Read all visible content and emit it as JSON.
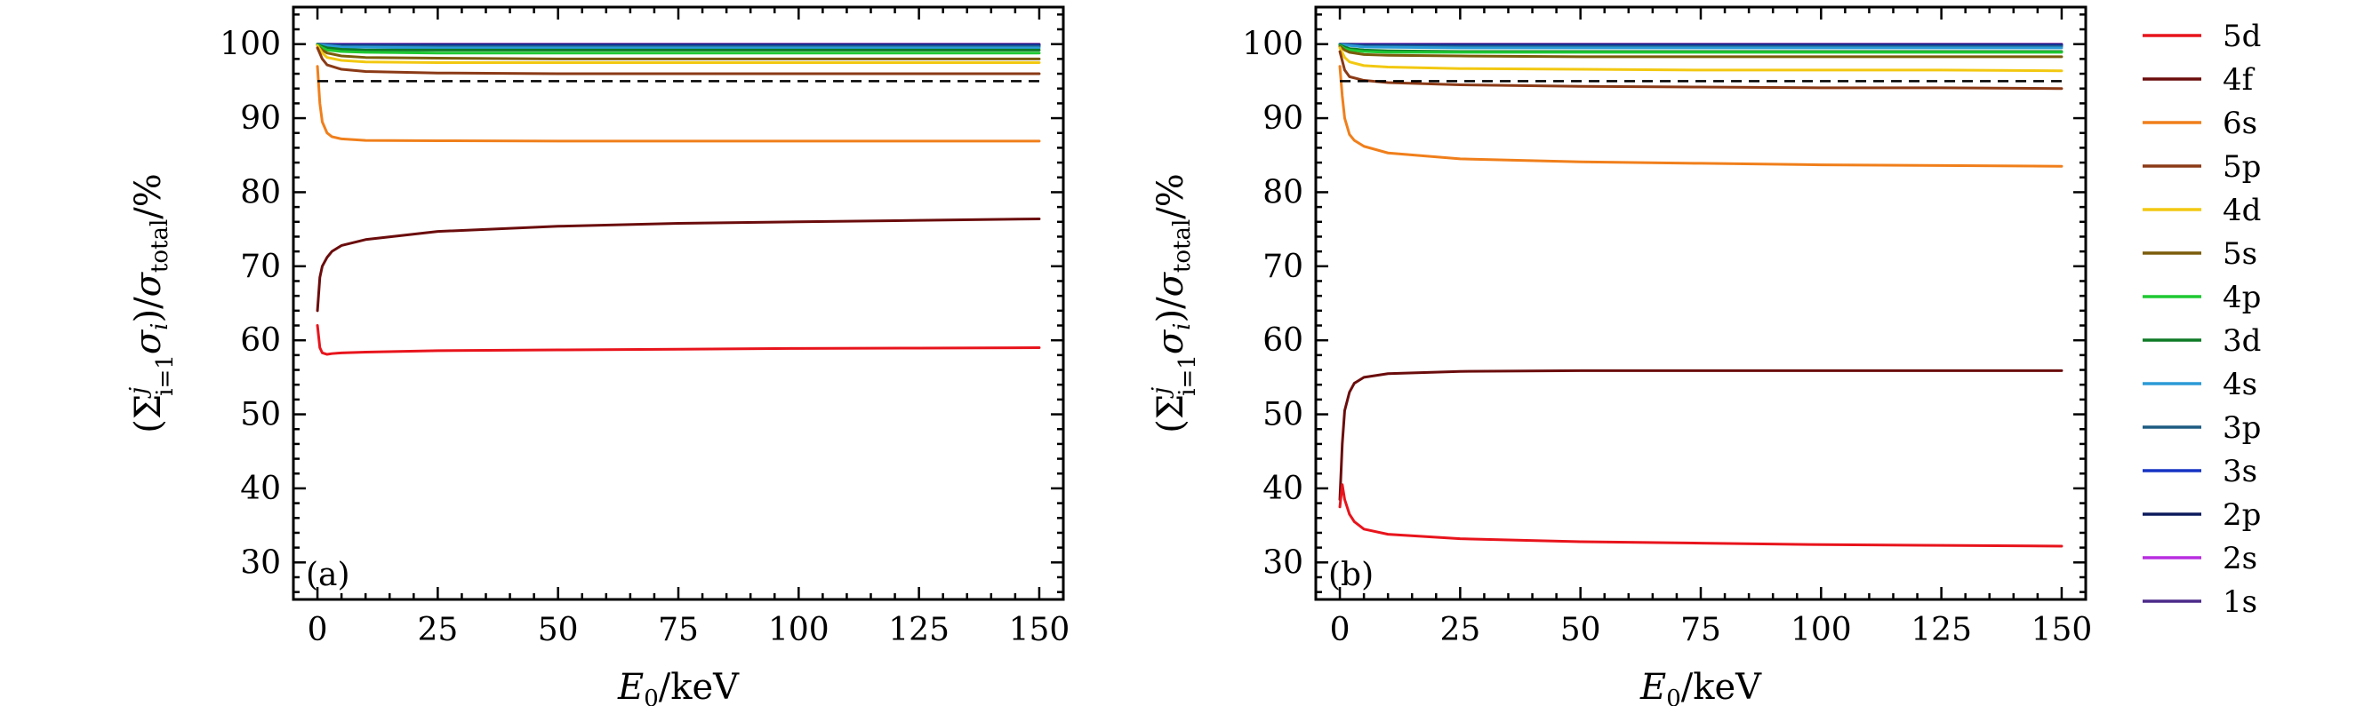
{
  "chart_data": [
    {
      "type": "line",
      "panel_label": "(a)",
      "xlabel": "E0/keV",
      "ylabel": "(Σ_{i=1}^{j} σ_i)/σ_total/%",
      "xlim": [
        -5,
        155
      ],
      "ylim": [
        25,
        105
      ],
      "xticks": [
        0,
        25,
        50,
        75,
        100,
        125,
        150
      ],
      "yticks": [
        30,
        40,
        50,
        60,
        70,
        80,
        90,
        100
      ],
      "reference_line": {
        "y": 95,
        "style": "dashed",
        "color": "#000000"
      },
      "series": [
        {
          "name": "5d",
          "color": "#e8141c",
          "x": [
            0,
            0.5,
            1,
            2,
            3,
            5,
            10,
            25,
            50,
            75,
            100,
            125,
            150
          ],
          "values": [
            62.0,
            59.0,
            58.3,
            58.1,
            58.2,
            58.3,
            58.4,
            58.6,
            58.7,
            58.8,
            58.9,
            58.95,
            59.0
          ]
        },
        {
          "name": "4f",
          "color": "#6b0c0c",
          "x": [
            0,
            0.5,
            1,
            2,
            3,
            5,
            10,
            25,
            50,
            75,
            100,
            125,
            150
          ],
          "values": [
            64.0,
            68.5,
            70.0,
            71.2,
            72.0,
            72.8,
            73.6,
            74.7,
            75.4,
            75.8,
            76.0,
            76.2,
            76.4
          ]
        },
        {
          "name": "6s",
          "color": "#f07f1b",
          "x": [
            0,
            0.5,
            1,
            2,
            3,
            5,
            10,
            25,
            50,
            75,
            100,
            125,
            150
          ],
          "values": [
            97.0,
            92.0,
            89.5,
            88.0,
            87.5,
            87.2,
            87.0,
            86.95,
            86.9,
            86.9,
            86.9,
            86.9,
            86.9
          ]
        },
        {
          "name": "5p",
          "color": "#8b3a16",
          "x": [
            0,
            1,
            2,
            5,
            10,
            25,
            50,
            75,
            100,
            125,
            150
          ],
          "values": [
            99.5,
            98.0,
            97.2,
            96.6,
            96.3,
            96.1,
            96.0,
            96.0,
            96.0,
            96.0,
            96.0
          ]
        },
        {
          "name": "4d",
          "color": "#f2c811",
          "x": [
            0,
            1,
            2,
            5,
            10,
            25,
            50,
            75,
            100,
            125,
            150
          ],
          "values": [
            99.8,
            98.8,
            98.2,
            97.8,
            97.6,
            97.5,
            97.5,
            97.5,
            97.5,
            97.5,
            97.5
          ]
        },
        {
          "name": "5s",
          "color": "#7a5c0a",
          "x": [
            0,
            1,
            2,
            5,
            10,
            25,
            50,
            75,
            100,
            125,
            150
          ],
          "values": [
            99.8,
            99.2,
            98.8,
            98.4,
            98.2,
            98.1,
            98.0,
            98.0,
            98.0,
            98.0,
            98.0
          ]
        },
        {
          "name": "4p",
          "color": "#1ec932",
          "x": [
            0,
            1,
            2,
            5,
            10,
            25,
            50,
            75,
            100,
            125,
            150
          ],
          "values": [
            99.9,
            99.5,
            99.2,
            99.0,
            98.9,
            98.8,
            98.8,
            98.8,
            98.8,
            98.8,
            98.8
          ]
        },
        {
          "name": "3d",
          "color": "#0e7a26",
          "x": [
            0,
            1,
            2,
            5,
            10,
            25,
            50,
            75,
            100,
            125,
            150
          ],
          "values": [
            99.95,
            99.7,
            99.5,
            99.3,
            99.2,
            99.2,
            99.2,
            99.2,
            99.2,
            99.2,
            99.2
          ]
        },
        {
          "name": "4s",
          "color": "#2c9ad6",
          "x": [
            0,
            5,
            25,
            150
          ],
          "values": [
            99.95,
            99.6,
            99.5,
            99.5
          ]
        },
        {
          "name": "3p",
          "color": "#1d5b82",
          "x": [
            0,
            5,
            25,
            150
          ],
          "values": [
            99.97,
            99.75,
            99.7,
            99.7
          ]
        },
        {
          "name": "3s",
          "color": "#1634c4",
          "x": [
            0,
            5,
            25,
            150
          ],
          "values": [
            99.98,
            99.85,
            99.8,
            99.8
          ]
        },
        {
          "name": "2p",
          "color": "#0b1a5c",
          "x": [
            0,
            5,
            25,
            150
          ],
          "values": [
            99.99,
            99.9,
            99.9,
            99.9
          ]
        },
        {
          "name": "2s",
          "color": "#b82ee0",
          "x": [
            0,
            150
          ],
          "values": [
            99.95,
            99.95
          ]
        },
        {
          "name": "1s",
          "color": "#4b2a8a",
          "x": [
            0,
            150
          ],
          "values": [
            100.0,
            100.0
          ]
        }
      ]
    },
    {
      "type": "line",
      "panel_label": "(b)",
      "xlabel": "E0/keV",
      "ylabel": "(Σ_{i=1}^{j} σ_i)/σ_total/%",
      "xlim": [
        -5,
        155
      ],
      "ylim": [
        25,
        105
      ],
      "xticks": [
        0,
        25,
        50,
        75,
        100,
        125,
        150
      ],
      "yticks": [
        30,
        40,
        50,
        60,
        70,
        80,
        90,
        100
      ],
      "reference_line": {
        "y": 95,
        "style": "dashed",
        "color": "#000000"
      },
      "series": [
        {
          "name": "5d",
          "color": "#e8141c",
          "x": [
            0,
            0.5,
            1,
            2,
            3,
            5,
            10,
            25,
            50,
            75,
            100,
            125,
            150
          ],
          "values": [
            37.5,
            40.5,
            38.5,
            36.5,
            35.5,
            34.5,
            33.8,
            33.2,
            32.8,
            32.6,
            32.4,
            32.3,
            32.2
          ]
        },
        {
          "name": "4f",
          "color": "#6b0c0c",
          "x": [
            0,
            0.5,
            1,
            2,
            3,
            5,
            10,
            25,
            50,
            75,
            100,
            125,
            150
          ],
          "values": [
            38.5,
            46.0,
            50.5,
            53.0,
            54.2,
            55.0,
            55.5,
            55.8,
            55.9,
            55.9,
            55.9,
            55.9,
            55.9
          ]
        },
        {
          "name": "6s",
          "color": "#f07f1b",
          "x": [
            0,
            0.5,
            1,
            2,
            3,
            5,
            10,
            25,
            50,
            75,
            100,
            125,
            150
          ],
          "values": [
            97.0,
            93.0,
            90.0,
            87.8,
            87.0,
            86.2,
            85.3,
            84.5,
            84.1,
            83.9,
            83.7,
            83.6,
            83.5
          ]
        },
        {
          "name": "5p",
          "color": "#8b3a16",
          "x": [
            0,
            1,
            2,
            5,
            10,
            25,
            50,
            75,
            100,
            125,
            150
          ],
          "values": [
            99.0,
            96.5,
            95.6,
            95.1,
            94.8,
            94.5,
            94.3,
            94.2,
            94.1,
            94.1,
            94.0
          ]
        },
        {
          "name": "4d",
          "color": "#f2c811",
          "x": [
            0,
            1,
            2,
            5,
            10,
            25,
            50,
            75,
            100,
            125,
            150
          ],
          "values": [
            99.5,
            98.2,
            97.6,
            97.1,
            96.9,
            96.7,
            96.6,
            96.5,
            96.5,
            96.5,
            96.4
          ]
        },
        {
          "name": "5s",
          "color": "#7a5c0a",
          "x": [
            0,
            1,
            2,
            5,
            10,
            25,
            50,
            75,
            100,
            125,
            150
          ],
          "values": [
            99.7,
            99.2,
            98.9,
            98.6,
            98.5,
            98.4,
            98.3,
            98.3,
            98.3,
            98.3,
            98.3
          ]
        },
        {
          "name": "4p",
          "color": "#1ec932",
          "x": [
            0,
            1,
            2,
            5,
            10,
            25,
            50,
            75,
            100,
            125,
            150
          ],
          "values": [
            99.8,
            99.4,
            99.2,
            99.0,
            98.9,
            98.9,
            98.9,
            98.9,
            98.9,
            98.9,
            98.9
          ]
        },
        {
          "name": "3d",
          "color": "#0e7a26",
          "x": [
            0,
            1,
            2,
            5,
            10,
            25,
            50,
            75,
            100,
            125,
            150
          ],
          "values": [
            99.9,
            99.6,
            99.4,
            99.2,
            99.1,
            99.0,
            99.0,
            99.0,
            99.0,
            99.0,
            99.0
          ]
        },
        {
          "name": "4s",
          "color": "#2c9ad6",
          "x": [
            0,
            5,
            25,
            150
          ],
          "values": [
            99.95,
            99.6,
            99.5,
            99.5
          ]
        },
        {
          "name": "3p",
          "color": "#1d5b82",
          "x": [
            0,
            5,
            25,
            150
          ],
          "values": [
            99.97,
            99.75,
            99.7,
            99.7
          ]
        },
        {
          "name": "3s",
          "color": "#1634c4",
          "x": [
            0,
            5,
            25,
            150
          ],
          "values": [
            99.98,
            99.85,
            99.8,
            99.8
          ]
        },
        {
          "name": "2p",
          "color": "#0b1a5c",
          "x": [
            0,
            5,
            25,
            150
          ],
          "values": [
            99.99,
            99.9,
            99.9,
            99.9
          ]
        },
        {
          "name": "2s",
          "color": "#b82ee0",
          "x": [
            0,
            150
          ],
          "values": [
            99.95,
            99.95
          ]
        },
        {
          "name": "1s",
          "color": "#4b2a8a",
          "x": [
            0,
            150
          ],
          "values": [
            100.0,
            100.0
          ]
        }
      ]
    }
  ],
  "legend": {
    "placement": "right",
    "entries": [
      {
        "name": "5d",
        "color": "#e8141c"
      },
      {
        "name": "4f",
        "color": "#6b0c0c"
      },
      {
        "name": "6s",
        "color": "#f07f1b"
      },
      {
        "name": "5p",
        "color": "#8b3a16"
      },
      {
        "name": "4d",
        "color": "#f2c811"
      },
      {
        "name": "5s",
        "color": "#7a5c0a"
      },
      {
        "name": "4p",
        "color": "#1ec932"
      },
      {
        "name": "3d",
        "color": "#0e7a26"
      },
      {
        "name": "4s",
        "color": "#2c9ad6"
      },
      {
        "name": "3p",
        "color": "#1d5b82"
      },
      {
        "name": "3s",
        "color": "#1634c4"
      },
      {
        "name": "2p",
        "color": "#0b1a5c"
      },
      {
        "name": "2s",
        "color": "#b82ee0"
      },
      {
        "name": "1s",
        "color": "#4b2a8a"
      }
    ]
  }
}
